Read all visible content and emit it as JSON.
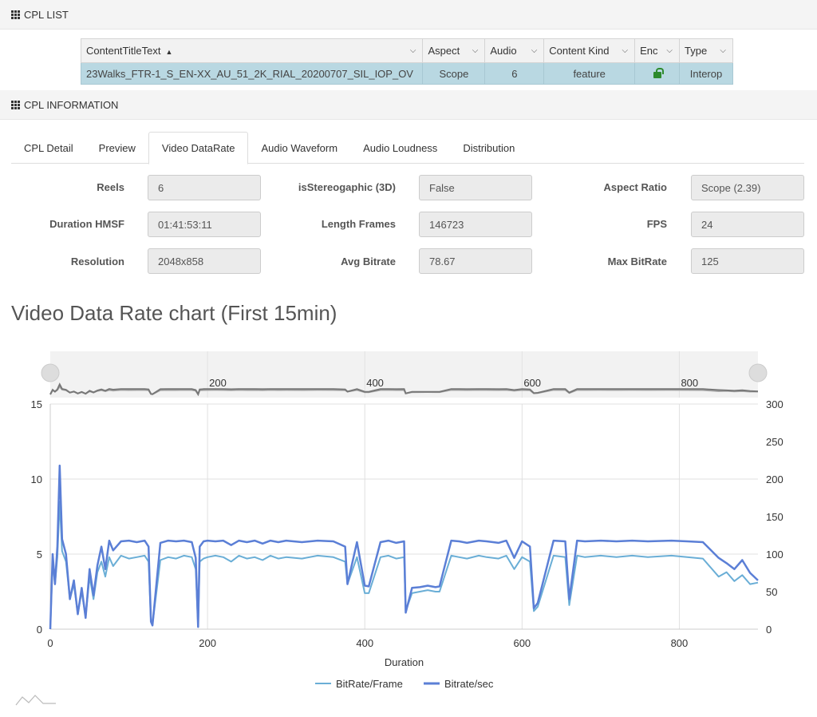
{
  "cpl_list": {
    "title": "CPL LIST",
    "columns": [
      "ContentTitleText",
      "Aspect",
      "Audio",
      "Content Kind",
      "Enc",
      "Type"
    ],
    "rows": [
      {
        "title": "23Walks_FTR-1_S_EN-XX_AU_51_2K_RIAL_20200707_SIL_IOP_OV",
        "aspect": "Scope",
        "audio": "6",
        "content_kind": "feature",
        "enc_icon": "unlocked-icon",
        "type": "Interop"
      }
    ]
  },
  "cpl_info": {
    "title": "CPL INFORMATION",
    "tabs": [
      "CPL Detail",
      "Preview",
      "Video DataRate",
      "Audio Waveform",
      "Audio Loudness",
      "Distribution"
    ],
    "active_tab": "Video DataRate",
    "fields": {
      "reels": {
        "label": "Reels",
        "value": "6"
      },
      "is_stereo": {
        "label": "isStereogaphic (3D)",
        "value": "False"
      },
      "aspect_ratio": {
        "label": "Aspect Ratio",
        "value": "Scope (2.39)"
      },
      "duration": {
        "label": "Duration HMSF",
        "value": "01:41:53:11"
      },
      "length_frames": {
        "label": "Length Frames",
        "value": "146723"
      },
      "fps": {
        "label": "FPS",
        "value": "24"
      },
      "resolution": {
        "label": "Resolution",
        "value": "2048x858"
      },
      "avg_bitrate": {
        "label": "Avg Bitrate",
        "value": "78.67"
      },
      "max_bitrate": {
        "label": "Max BitRate",
        "value": "125"
      }
    }
  },
  "chart_data": {
    "type": "line",
    "title": "Video Data Rate chart (First 15min)",
    "xlabel": "Duration",
    "xlim": [
      0,
      900
    ],
    "x_ticks": [
      0,
      200,
      400,
      600,
      800
    ],
    "navigator_ticks": [
      200,
      400,
      600,
      800
    ],
    "y_left_lim": [
      0,
      15
    ],
    "y_left_ticks": [
      0,
      5,
      10,
      15
    ],
    "y_right_lim": [
      0,
      300
    ],
    "y_right_ticks": [
      0,
      50,
      100,
      150,
      200,
      250,
      300
    ],
    "grid": true,
    "legend_placement": "bottom-center",
    "series": [
      {
        "name": "BitRate/Frame",
        "axis": "left",
        "color": "#6aaed6",
        "x": [
          0,
          3,
          6,
          9,
          12,
          15,
          20,
          25,
          30,
          35,
          40,
          45,
          50,
          55,
          60,
          65,
          70,
          75,
          80,
          90,
          100,
          110,
          120,
          125,
          128,
          130,
          140,
          150,
          160,
          170,
          180,
          185,
          188,
          190,
          195,
          200,
          210,
          220,
          230,
          240,
          250,
          260,
          270,
          280,
          290,
          300,
          320,
          340,
          360,
          375,
          378,
          390,
          400,
          405,
          420,
          430,
          440,
          450,
          452,
          460,
          470,
          480,
          490,
          495,
          510,
          520,
          530,
          545,
          555,
          570,
          580,
          590,
          600,
          610,
          615,
          620,
          640,
          655,
          660,
          670,
          680,
          700,
          720,
          740,
          760,
          790,
          810,
          830,
          850,
          860,
          870,
          880,
          890,
          900
        ],
        "y": [
          0,
          4.5,
          3.0,
          4.8,
          8.5,
          5.2,
          4.5,
          2.0,
          3.0,
          1.0,
          2.5,
          0.8,
          3.5,
          2.0,
          3.8,
          4.5,
          3.5,
          4.8,
          4.2,
          4.9,
          4.7,
          4.8,
          4.9,
          4.5,
          0.5,
          0.3,
          4.6,
          4.8,
          4.7,
          4.9,
          4.8,
          4.0,
          0.2,
          4.5,
          4.7,
          4.8,
          4.9,
          4.8,
          4.5,
          4.9,
          4.7,
          4.8,
          4.6,
          4.9,
          4.7,
          4.8,
          4.7,
          4.9,
          4.8,
          4.5,
          3.0,
          4.8,
          2.4,
          2.4,
          4.8,
          4.9,
          4.7,
          4.8,
          1.2,
          2.4,
          2.5,
          2.6,
          2.5,
          2.5,
          4.9,
          4.8,
          4.7,
          4.9,
          4.8,
          4.7,
          4.9,
          4.0,
          4.8,
          4.5,
          1.2,
          1.5,
          4.9,
          4.8,
          1.6,
          4.9,
          4.8,
          4.9,
          4.8,
          4.9,
          4.8,
          4.9,
          4.8,
          4.7,
          3.5,
          3.8,
          3.2,
          3.6,
          3.0,
          3.1
        ]
      },
      {
        "name": "Bitrate/sec",
        "axis": "right",
        "color": "#5b7fd6",
        "x": [
          0,
          3,
          6,
          9,
          12,
          15,
          20,
          25,
          30,
          35,
          40,
          45,
          50,
          55,
          60,
          65,
          70,
          75,
          80,
          90,
          100,
          110,
          120,
          125,
          128,
          130,
          140,
          150,
          160,
          170,
          180,
          185,
          188,
          190,
          195,
          200,
          210,
          220,
          230,
          240,
          250,
          260,
          270,
          280,
          290,
          300,
          320,
          340,
          360,
          375,
          378,
          390,
          400,
          405,
          420,
          430,
          440,
          450,
          452,
          460,
          470,
          480,
          490,
          495,
          510,
          520,
          530,
          545,
          555,
          570,
          580,
          590,
          600,
          610,
          615,
          620,
          640,
          655,
          660,
          670,
          680,
          700,
          720,
          740,
          760,
          790,
          810,
          830,
          850,
          860,
          870,
          880,
          890,
          900
        ],
        "y": [
          0,
          100,
          60,
          110,
          218,
          120,
          100,
          40,
          65,
          20,
          55,
          15,
          80,
          45,
          85,
          110,
          80,
          118,
          105,
          117,
          118,
          116,
          118,
          110,
          10,
          5,
          115,
          118,
          117,
          118,
          116,
          95,
          3,
          110,
          117,
          118,
          117,
          118,
          112,
          118,
          116,
          118,
          114,
          118,
          116,
          118,
          116,
          118,
          117,
          110,
          60,
          116,
          58,
          57,
          116,
          118,
          115,
          117,
          22,
          55,
          56,
          58,
          56,
          57,
          118,
          117,
          115,
          118,
          117,
          115,
          118,
          95,
          117,
          110,
          28,
          35,
          118,
          117,
          40,
          118,
          117,
          118,
          117,
          118,
          117,
          118,
          117,
          116,
          95,
          88,
          80,
          92,
          75,
          65
        ]
      }
    ]
  }
}
